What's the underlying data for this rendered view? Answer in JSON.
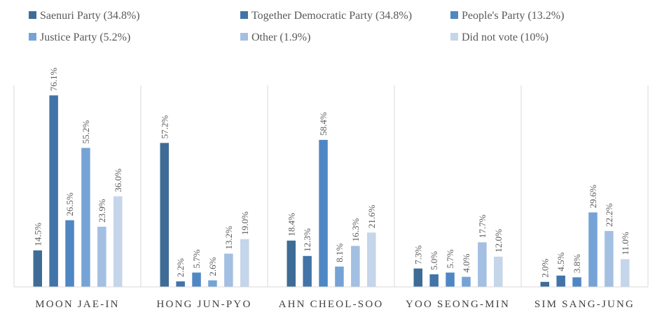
{
  "chart_data": {
    "type": "bar",
    "title": "",
    "xlabel": "",
    "ylabel": "",
    "ylim": [
      0,
      80
    ],
    "grid": false,
    "legend_position": "top",
    "categories": [
      "MOON JAE-IN",
      "HONG JUN-PYO",
      "AHN CHEOL-SOO",
      "YOO SEONG-MIN",
      "SIM SANG-JUNG"
    ],
    "series": [
      {
        "name": "Saenuri Party (34.8%)",
        "color": "#3e6c96",
        "values": [
          14.5,
          57.2,
          18.4,
          7.3,
          2.0
        ],
        "labels": [
          "14.5%",
          "57.2%",
          "18.4%",
          "7.3%",
          "2.0%"
        ]
      },
      {
        "name": "Together Democratic Party (34.8%)",
        "color": "#4274a8",
        "values": [
          76.1,
          2.2,
          12.3,
          5.0,
          4.5
        ],
        "labels": [
          "76.1%",
          "2.2%",
          "12.3%",
          "5.0%",
          "4.5%"
        ]
      },
      {
        "name": "People's Party (13.2%)",
        "color": "#4f87c4",
        "values": [
          26.5,
          5.7,
          58.4,
          5.7,
          3.8
        ],
        "labels": [
          "26.5%",
          "5.7%",
          "58.4%",
          "5.7%",
          "3.8%"
        ]
      },
      {
        "name": "Justice Party (5.2%)",
        "color": "#76a3d6",
        "values": [
          55.2,
          2.6,
          8.1,
          4.0,
          29.6
        ],
        "labels": [
          "55.2%",
          "2.6%",
          "8.1%",
          "4.0%",
          "29.6%"
        ]
      },
      {
        "name": "Other (1.9%)",
        "color": "#a3bfe2",
        "values": [
          23.9,
          13.2,
          16.3,
          17.7,
          22.2
        ],
        "labels": [
          "23.9%",
          "13.2%",
          "16.3%",
          "17.7%",
          "22.2%"
        ]
      },
      {
        "name": "Did not vote (10%)",
        "color": "#c5d5ea",
        "values": [
          36.0,
          19.0,
          21.6,
          12.0,
          11.0
        ],
        "labels": [
          "36.0%",
          "19.0%",
          "21.6%",
          "12.0%",
          "11.0%"
        ]
      }
    ],
    "colors": {
      "axis": "#d9d9d9",
      "text": "#595959"
    }
  }
}
